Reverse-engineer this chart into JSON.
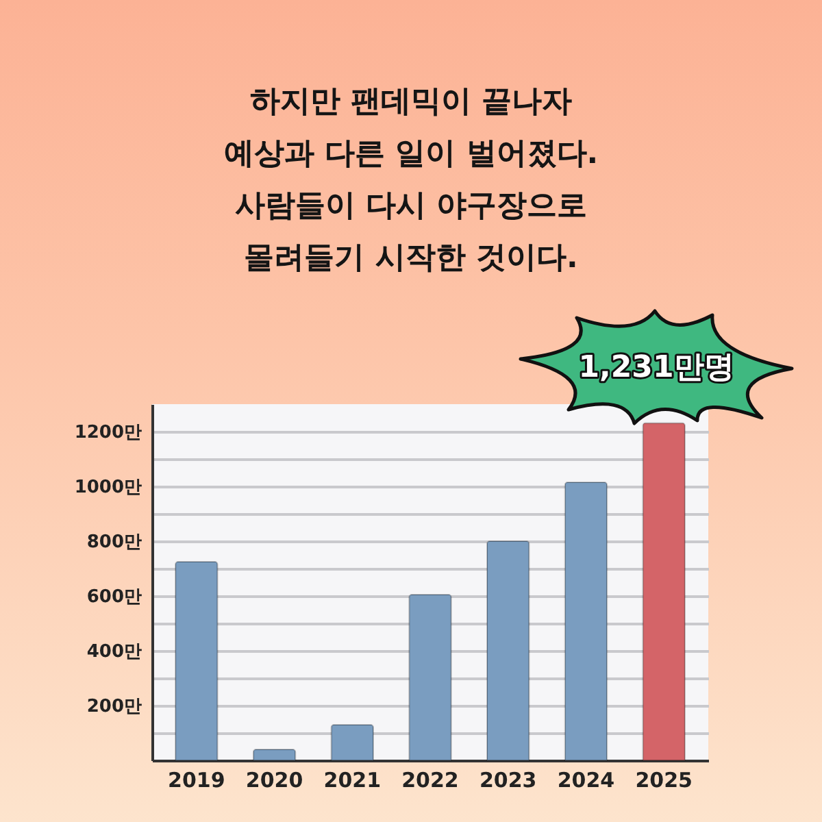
{
  "chart_data": {
    "type": "bar",
    "title": "하지만 팬데믹이 끝나자\n예상과 다른 일이 벌어졌다.\n사람들이 다시 야구장으로\n몰려들기 시작한 것이다.",
    "categories": [
      "2019",
      "2020",
      "2021",
      "2022",
      "2023",
      "2024",
      "2025"
    ],
    "values": [
      725,
      40,
      130,
      605,
      800,
      1015,
      1231
    ],
    "colors": [
      "#7a9dc0",
      "#7a9dc0",
      "#7a9dc0",
      "#7a9dc0",
      "#7a9dc0",
      "#7a9dc0",
      "#d46468"
    ],
    "ylim": [
      0,
      1300
    ],
    "yticks": [
      {
        "value": 100,
        "label": null
      },
      {
        "value": 200,
        "label": "200만"
      },
      {
        "value": 300,
        "label": null
      },
      {
        "value": 400,
        "label": "400만"
      },
      {
        "value": 500,
        "label": null
      },
      {
        "value": 600,
        "label": "600만"
      },
      {
        "value": 700,
        "label": null
      },
      {
        "value": 800,
        "label": "800만"
      },
      {
        "value": 900,
        "label": null
      },
      {
        "value": 1000,
        "label": "1000만"
      },
      {
        "value": 1100,
        "label": null
      },
      {
        "value": 1200,
        "label": "1200만"
      }
    ],
    "grid": "y",
    "annotations": [
      {
        "text": "1,231만명",
        "x": "2025",
        "y": 1231
      }
    ]
  }
}
